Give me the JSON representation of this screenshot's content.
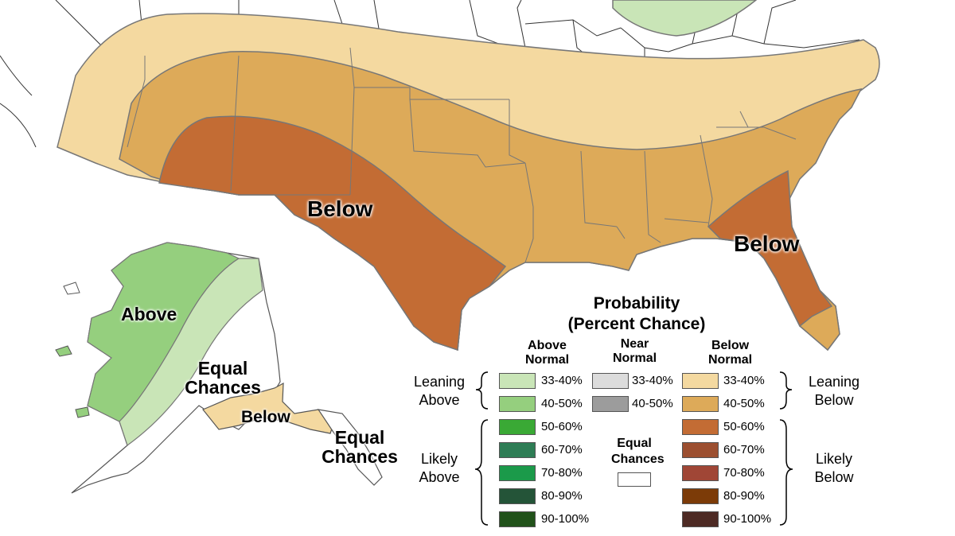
{
  "map_labels": {
    "conus_below_west": "Below",
    "conus_below_east": "Below",
    "ak_above": "Above",
    "ak_equal_1": "Equal Chances",
    "ak_below": "Below",
    "ak_equal_2": "Equal Chances"
  },
  "legend": {
    "title_line1": "Probability",
    "title_line2": "(Percent Chance)",
    "col_above": "Above Normal",
    "col_near": "Near Normal",
    "col_below": "Below Normal",
    "side_leaning_above": "Leaning Above",
    "side_likely_above": "Likely Above",
    "side_leaning_below": "Leaning Below",
    "side_likely_below": "Likely Below",
    "equal_chances": "Equal Chances",
    "above_items": [
      {
        "label": "33-40%",
        "color": "#c9e5b7"
      },
      {
        "label": "40-50%",
        "color": "#95cf7e"
      },
      {
        "label": "50-60%",
        "color": "#3aa935"
      },
      {
        "label": "60-70%",
        "color": "#2e7d55"
      },
      {
        "label": "70-80%",
        "color": "#1b9a4a"
      },
      {
        "label": "80-90%",
        "color": "#245438"
      },
      {
        "label": "90-100%",
        "color": "#21521a"
      }
    ],
    "near_items": [
      {
        "label": "33-40%",
        "color": "#dcdcdc"
      },
      {
        "label": "40-50%",
        "color": "#9c9c9c"
      }
    ],
    "below_items": [
      {
        "label": "33-40%",
        "color": "#f4d9a0"
      },
      {
        "label": "40-50%",
        "color": "#ddaa59"
      },
      {
        "label": "50-60%",
        "color": "#c36c34"
      },
      {
        "label": "60-70%",
        "color": "#9c4f30"
      },
      {
        "label": "70-80%",
        "color": "#a04636"
      },
      {
        "label": "80-90%",
        "color": "#7c3b08"
      },
      {
        "label": "90-100%",
        "color": "#4d2a24"
      }
    ],
    "equal_color": "#ffffff"
  }
}
